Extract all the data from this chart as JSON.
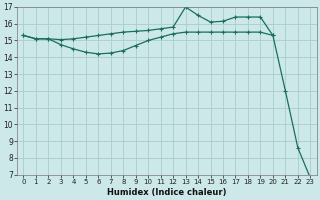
{
  "xlabel": "Humidex (Indice chaleur)",
  "bg_color": "#cce8e8",
  "grid_color": "#aacccc",
  "line_color": "#1a6e5a",
  "xlim_min": -0.5,
  "xlim_max": 23.5,
  "ylim_min": 7,
  "ylim_max": 17,
  "yticks": [
    7,
    8,
    9,
    10,
    11,
    12,
    13,
    14,
    15,
    16,
    17
  ],
  "xticks": [
    0,
    1,
    2,
    3,
    4,
    5,
    6,
    7,
    8,
    9,
    10,
    11,
    12,
    13,
    14,
    15,
    16,
    17,
    18,
    19,
    20,
    21,
    22,
    23
  ],
  "line_upper_x": [
    0,
    1,
    2,
    3,
    4,
    5,
    6,
    7,
    8,
    9,
    10,
    11,
    12,
    13,
    14,
    15,
    16,
    17,
    18,
    19,
    20,
    21,
    22,
    23
  ],
  "line_upper_y": [
    15.3,
    15.1,
    15.1,
    15.05,
    15.1,
    15.2,
    15.3,
    15.4,
    15.5,
    15.55,
    15.6,
    15.7,
    15.8,
    17.0,
    16.5,
    16.1,
    16.15,
    16.4,
    16.4,
    16.4,
    15.3,
    12.0,
    8.6,
    6.8
  ],
  "line_lower_x": [
    0,
    1,
    2,
    3,
    4,
    5,
    6,
    7,
    8,
    9,
    10,
    11,
    12,
    13,
    14,
    15,
    16,
    17,
    18,
    19,
    20
  ],
  "line_lower_y": [
    15.3,
    15.1,
    15.1,
    14.75,
    14.5,
    14.3,
    14.2,
    14.25,
    14.4,
    14.7,
    15.0,
    15.2,
    15.4,
    15.5,
    15.5,
    15.5,
    15.5,
    15.5,
    15.5,
    15.5,
    15.3
  ]
}
